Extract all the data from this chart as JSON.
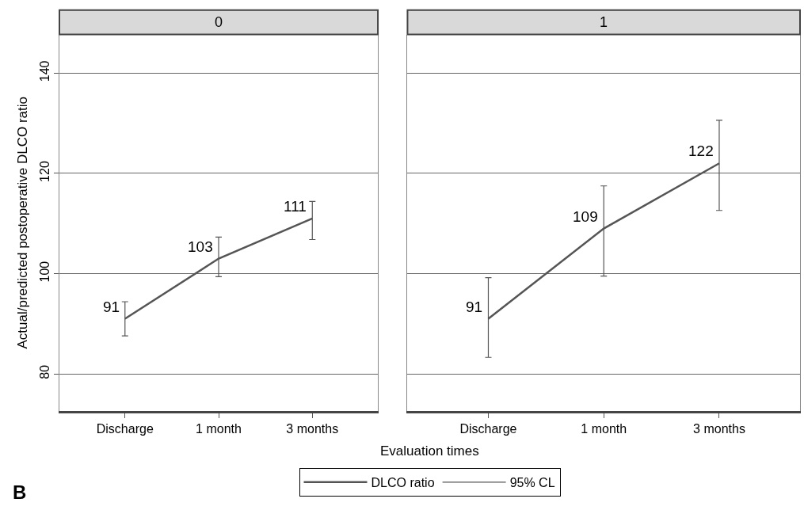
{
  "chart_data": [
    {
      "type": "line",
      "title": "0",
      "ylabel": "Actual/predicted postoperative DLCO ratio",
      "xlabel": "Evaluation times",
      "categories": [
        "Discharge",
        "1 month",
        "3 months"
      ],
      "series": [
        {
          "name": "DLCO ratio",
          "color": "#555555",
          "values": [
            91,
            103,
            111
          ],
          "errors": [
            [
              87.6,
              94.4
            ],
            [
              99.4,
              107.3
            ],
            [
              106.8,
              114.4
            ]
          ]
        }
      ],
      "data_labels": true,
      "ylim": [
        72.6,
        147.7
      ],
      "yticks": [
        80,
        100,
        120,
        140
      ],
      "grid": "y",
      "marker": "none",
      "line_style": "solid",
      "legend": "bottom",
      "annotations": [
        "95% CL",
        "B"
      ]
    },
    {
      "type": "line",
      "title": "1",
      "categories": [
        "Discharge",
        "1 month",
        "3 months"
      ],
      "series": [
        {
          "color": "#555555",
          "values": [
            91,
            109,
            122
          ],
          "errors": [
            [
              83.3,
              99.2
            ],
            [
              99.5,
              117.5
            ],
            [
              112.6,
              130.6
            ]
          ]
        }
      ],
      "data_labels": true,
      "ylim": [
        72.6,
        147.7
      ],
      "yticks": [
        80,
        100,
        120,
        140
      ],
      "grid": "y",
      "marker": "none",
      "line_style": "solid",
      "tick_labels": "x"
    }
  ]
}
